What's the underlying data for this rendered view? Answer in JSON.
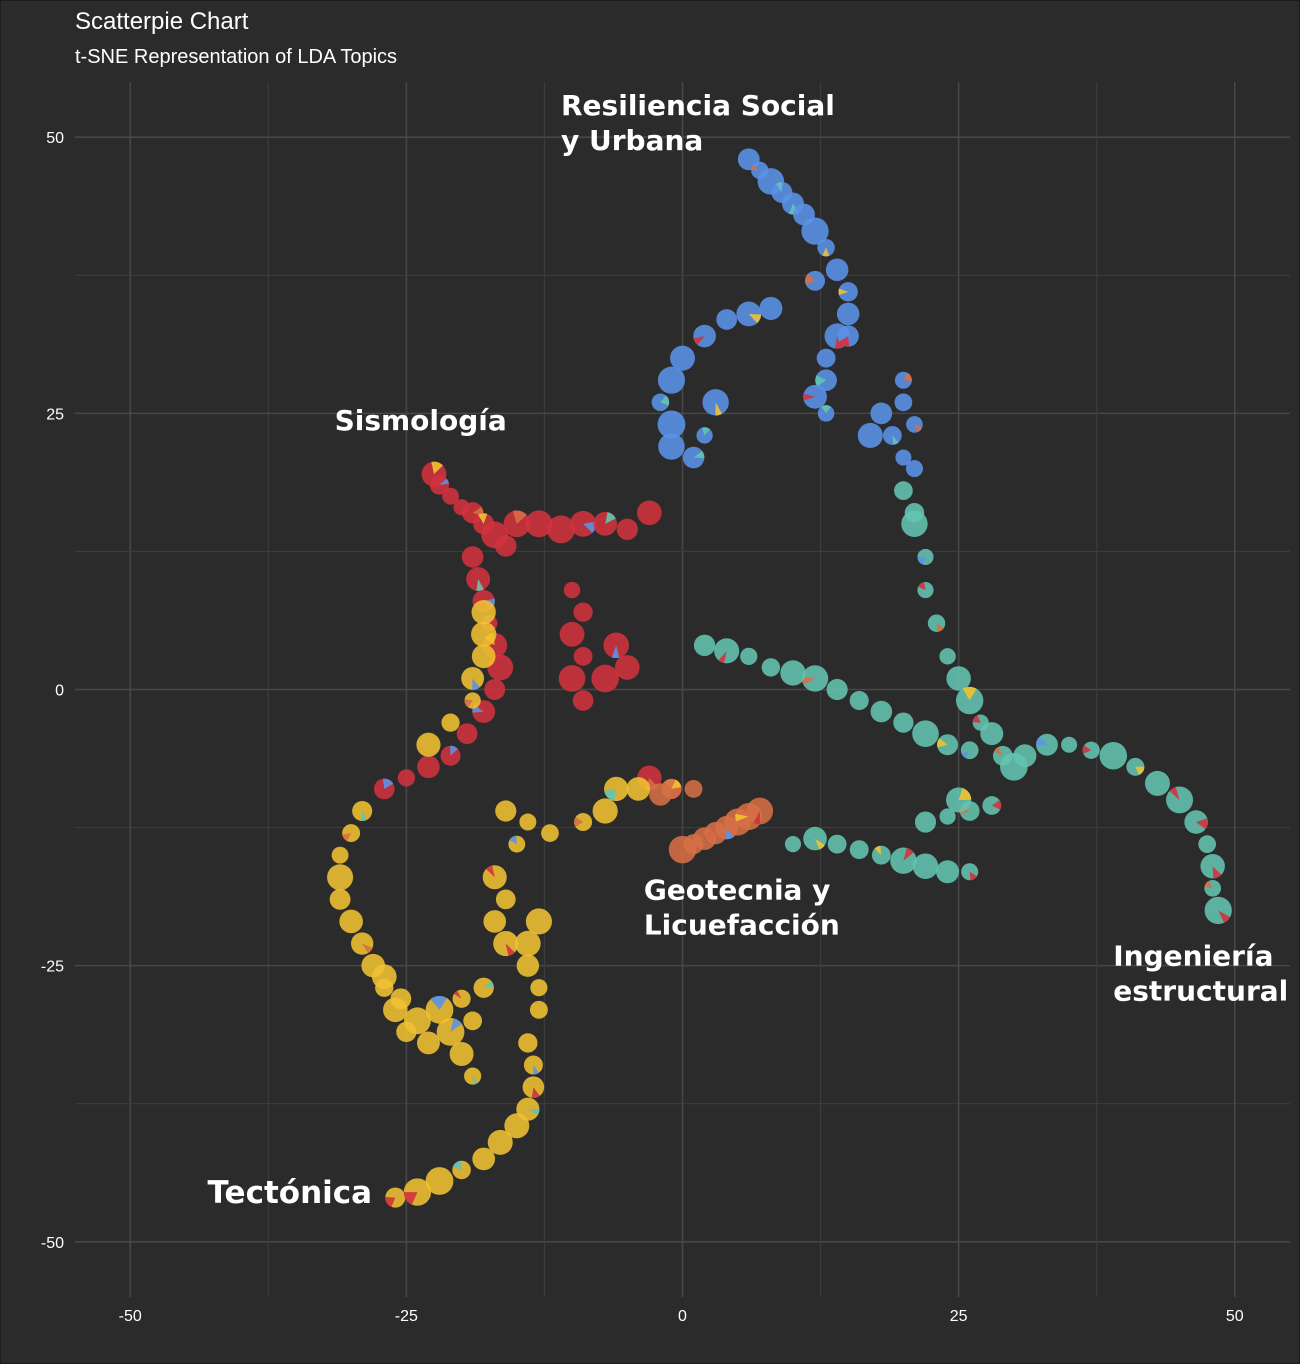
{
  "title": "Scatterpie Chart",
  "subtitle": "t-SNE Representation of LDA Topics",
  "chart_data": {
    "type": "scatter",
    "xlim": [
      -55,
      55
    ],
    "ylim": [
      -55,
      55
    ],
    "x_ticks": [
      -50,
      -25,
      0,
      25,
      50
    ],
    "y_ticks": [
      50,
      25,
      0,
      -25,
      -50
    ],
    "x_tick_labels": [
      "-50",
      "-25",
      "0",
      "25",
      "50"
    ],
    "y_tick_labels": [
      "50",
      "25",
      "0",
      "-25",
      "-50"
    ],
    "grid": true,
    "legend": "none",
    "topic_colors": {
      "Resiliencia Social y Urbana": "#5b93e8",
      "Sismología": "#d2323d",
      "Geotecnia y Licuefacción": "#d56f45",
      "Ingeniería estructural": "#63c4b0",
      "Tectónica": "#f0c232"
    },
    "annotations": [
      {
        "lines": [
          "Resiliencia Social",
          "y Urbana"
        ],
        "x": -11,
        "y": 52
      },
      {
        "lines": [
          "Sismología"
        ],
        "x": -31.5,
        "y": 23.5
      },
      {
        "lines": [
          "Geotecnia y",
          "Licuefacción"
        ],
        "x": -3.5,
        "y": -19
      },
      {
        "lines": [
          "Ingeniería",
          "estructural"
        ],
        "x": 39,
        "y": -25
      },
      {
        "lines": [
          "Tectónica"
        ],
        "x": -43,
        "y": -46.5
      }
    ],
    "series": [
      {
        "name": "Resiliencia Social y Urbana",
        "color": "#5b93e8",
        "points": [
          [
            6,
            48
          ],
          [
            7,
            47
          ],
          [
            8,
            46
          ],
          [
            9,
            45
          ],
          [
            10,
            44
          ],
          [
            11,
            43
          ],
          [
            12,
            41.5
          ],
          [
            13,
            40
          ],
          [
            14,
            38
          ],
          [
            15,
            36
          ],
          [
            15,
            34
          ],
          [
            14,
            32
          ],
          [
            13,
            30
          ],
          [
            13,
            28
          ],
          [
            12,
            26.5
          ],
          [
            13,
            25
          ],
          [
            12,
            37
          ],
          [
            15,
            32
          ],
          [
            -2,
            26
          ],
          [
            -1,
            28
          ],
          [
            0,
            30
          ],
          [
            2,
            32
          ],
          [
            4,
            33.5
          ],
          [
            6,
            34
          ],
          [
            8,
            34.5
          ],
          [
            -1,
            24
          ],
          [
            -1,
            22
          ],
          [
            1,
            21
          ],
          [
            2,
            23
          ],
          [
            3,
            26
          ],
          [
            20,
            28
          ],
          [
            20,
            26
          ],
          [
            21,
            24
          ],
          [
            19,
            23
          ],
          [
            20,
            21
          ],
          [
            21,
            20
          ],
          [
            18,
            25
          ],
          [
            17,
            23
          ]
        ]
      },
      {
        "name": "Sismología",
        "color": "#d2323d",
        "points": [
          [
            -22.5,
            19.5
          ],
          [
            -22,
            18.5
          ],
          [
            -21,
            17.5
          ],
          [
            -20,
            16.5
          ],
          [
            -19,
            16
          ],
          [
            -18,
            15
          ],
          [
            -17,
            14
          ],
          [
            -16,
            13
          ],
          [
            -15,
            15
          ],
          [
            -13,
            15
          ],
          [
            -11,
            14.5
          ],
          [
            -9,
            15
          ],
          [
            -7,
            15
          ],
          [
            -5,
            14.5
          ],
          [
            -3,
            16
          ],
          [
            -19,
            12
          ],
          [
            -18.5,
            10
          ],
          [
            -18,
            8
          ],
          [
            -17.5,
            6
          ],
          [
            -17,
            4
          ],
          [
            -16.5,
            2
          ],
          [
            -17,
            0
          ],
          [
            -18,
            -2
          ],
          [
            -19.5,
            -4
          ],
          [
            -21,
            -6
          ],
          [
            -23,
            -7
          ],
          [
            -25,
            -8
          ],
          [
            -27,
            -9
          ],
          [
            -10,
            9
          ],
          [
            -9,
            7
          ],
          [
            -10,
            5
          ],
          [
            -9,
            3
          ],
          [
            -10,
            1
          ],
          [
            -9,
            -1
          ],
          [
            -6,
            4
          ],
          [
            -5,
            2
          ],
          [
            -7,
            1
          ],
          [
            -1,
            -9
          ],
          [
            -3,
            -8
          ]
        ]
      },
      {
        "name": "Geotecnia y Licuefacción",
        "color": "#d56f45",
        "points": [
          [
            0,
            -14.5
          ],
          [
            1,
            -14
          ],
          [
            2,
            -13.5
          ],
          [
            3,
            -13
          ],
          [
            4,
            -12.5
          ],
          [
            5,
            -12
          ],
          [
            6,
            -11.5
          ],
          [
            7,
            -11
          ],
          [
            -1,
            -9
          ],
          [
            -2,
            -9.5
          ],
          [
            1,
            -9
          ]
        ]
      },
      {
        "name": "Ingeniería estructural",
        "color": "#63c4b0",
        "points": [
          [
            29,
            -6
          ],
          [
            31,
            -6
          ],
          [
            33,
            -5
          ],
          [
            35,
            -5
          ],
          [
            37,
            -5.5
          ],
          [
            39,
            -6
          ],
          [
            41,
            -7
          ],
          [
            43,
            -8.5
          ],
          [
            45,
            -10
          ],
          [
            46.5,
            -12
          ],
          [
            47.5,
            -14
          ],
          [
            48,
            -16
          ],
          [
            48,
            -18
          ],
          [
            48.5,
            -20
          ],
          [
            26,
            -5.5
          ],
          [
            24,
            -5
          ],
          [
            22,
            -4
          ],
          [
            20,
            -3
          ],
          [
            18,
            -2
          ],
          [
            16,
            -1
          ],
          [
            14,
            0
          ],
          [
            12,
            1
          ],
          [
            10,
            1.5
          ],
          [
            8,
            2
          ],
          [
            6,
            3
          ],
          [
            4,
            3.5
          ],
          [
            2,
            4
          ],
          [
            26,
            -11
          ],
          [
            24,
            -11.5
          ],
          [
            22,
            -12
          ],
          [
            25,
            -10
          ],
          [
            28,
            -10.5
          ],
          [
            20,
            -15.5
          ],
          [
            22,
            -16
          ],
          [
            24,
            -16.5
          ],
          [
            26,
            -16.5
          ],
          [
            18,
            -15
          ],
          [
            16,
            -14.5
          ],
          [
            14,
            -14
          ],
          [
            12,
            -13.5
          ],
          [
            10,
            -14
          ],
          [
            21,
            15
          ],
          [
            22,
            12
          ],
          [
            22,
            9
          ],
          [
            23,
            6
          ],
          [
            24,
            3
          ],
          [
            25,
            1
          ],
          [
            26,
            -1
          ],
          [
            27,
            -3
          ],
          [
            28,
            -4
          ],
          [
            30,
            -7
          ],
          [
            20,
            18
          ],
          [
            21,
            16
          ]
        ]
      },
      {
        "name": "Tectónica",
        "color": "#f0c232",
        "points": [
          [
            -26,
            -46
          ],
          [
            -24,
            -45.5
          ],
          [
            -22,
            -44.5
          ],
          [
            -20,
            -43.5
          ],
          [
            -18,
            -42.5
          ],
          [
            -16.5,
            -41
          ],
          [
            -15,
            -39.5
          ],
          [
            -14,
            -38
          ],
          [
            -13.5,
            -36
          ],
          [
            -13.5,
            -34
          ],
          [
            -14,
            -32
          ],
          [
            -29,
            -11
          ],
          [
            -30,
            -13
          ],
          [
            -31,
            -15
          ],
          [
            -31,
            -17
          ],
          [
            -31,
            -19
          ],
          [
            -30,
            -21
          ],
          [
            -29,
            -23
          ],
          [
            -28,
            -25
          ],
          [
            -27,
            -27
          ],
          [
            -26,
            -29
          ],
          [
            -25,
            -31
          ],
          [
            -23,
            -32
          ],
          [
            -24,
            -30
          ],
          [
            -25.5,
            -28
          ],
          [
            -27,
            -26
          ],
          [
            -22,
            -29
          ],
          [
            -21,
            -31
          ],
          [
            -20,
            -33
          ],
          [
            -19,
            -35
          ],
          [
            -13,
            -21
          ],
          [
            -14,
            -23
          ],
          [
            -14,
            -25
          ],
          [
            -13,
            -27
          ],
          [
            -13,
            -29
          ],
          [
            -17,
            -17
          ],
          [
            -16,
            -19
          ],
          [
            -17,
            -21
          ],
          [
            -16,
            -23
          ],
          [
            -20,
            -28
          ],
          [
            -19,
            -30
          ],
          [
            -18,
            -27
          ],
          [
            -12,
            -13
          ],
          [
            -14,
            -12
          ],
          [
            -15,
            -14
          ],
          [
            -16,
            -11
          ],
          [
            -9,
            -12
          ],
          [
            -7,
            -11
          ],
          [
            -6,
            -9
          ],
          [
            -4,
            -9
          ],
          [
            -23,
            -5
          ],
          [
            -21,
            -3
          ],
          [
            -19,
            -1
          ],
          [
            -19,
            1
          ],
          [
            -18,
            3
          ],
          [
            -18,
            5
          ],
          [
            -18,
            7
          ]
        ]
      }
    ]
  }
}
